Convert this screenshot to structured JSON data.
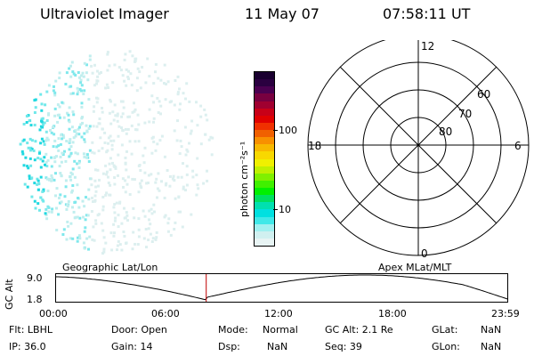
{
  "header": {
    "instrument": "Ultraviolet Imager",
    "date": "11 May 07",
    "time": "07:58:11 UT"
  },
  "colorbar": {
    "unit_label": "photon cm⁻²s⁻¹",
    "ticks": [
      "100",
      "10"
    ],
    "colors": [
      "#1a0030",
      "#2a0040",
      "#4a0050",
      "#780040",
      "#a00030",
      "#c80018",
      "#e00000",
      "#f03000",
      "#f06000",
      "#f89000",
      "#f8b800",
      "#f8d800",
      "#f0f000",
      "#c0f000",
      "#80f000",
      "#40f000",
      "#00f000",
      "#00e060",
      "#00e0b0",
      "#00e0e0",
      "#40e8e8",
      "#a0f0f0",
      "#d0f0f0",
      "#e8f4f4"
    ]
  },
  "polar": {
    "mlt_labels": {
      "top": "12",
      "left": "18",
      "right": "6",
      "bottom": "0"
    },
    "lat_labels": [
      "60",
      "70",
      "80"
    ]
  },
  "timeline": {
    "ylabel": "GC Alt",
    "y_ticks": [
      "9.0",
      "1.8"
    ],
    "left_title": "Geographic Lat/Lon",
    "right_title": "Apex MLat/MLT",
    "x_ticks": [
      "00:00",
      "06:00",
      "12:00",
      "18:00",
      "23:59"
    ],
    "marker_time_fraction": 0.3321
  },
  "info": {
    "flt": "Flt: LBHL",
    "ip": "IP: 36.0",
    "door": "Door: Open",
    "gain": "Gain: 14",
    "mode_label": "Mode:",
    "mode_value": "Normal",
    "dsp_label": "Dsp:",
    "dsp_value": "NaN",
    "gcalt": "GC Alt: 2.1 Re",
    "seq": "Seq: 39",
    "glat_label": "GLat:",
    "glat_value": "NaN",
    "glon_label": "GLon:",
    "glon_value": "NaN"
  }
}
